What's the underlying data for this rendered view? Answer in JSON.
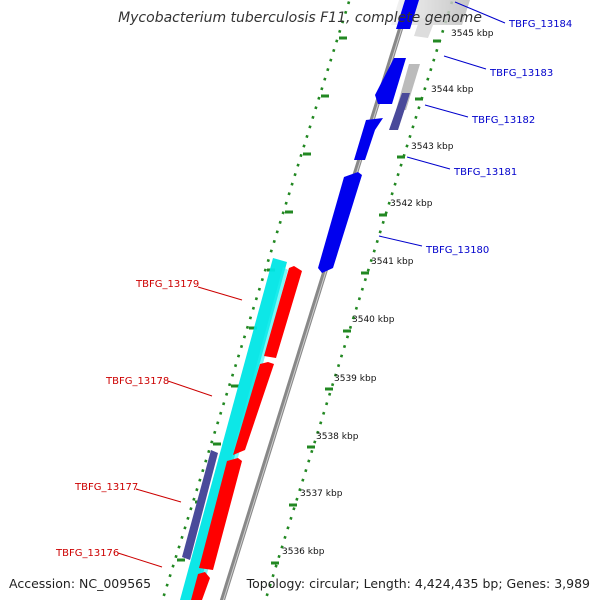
{
  "title": "Mycobacterium tuberculosis F11, complete genome",
  "accession_label": "Accession: NC_009565",
  "topology_label": "Topology: circular; Length: 4,424,435 bp; Genes: 3,989",
  "colors": {
    "forward_cds": "#0000ee",
    "forward_label": "#0000cc",
    "reverse_cds": "#ff0000",
    "reverse_label": "#cc0000",
    "other_feature": "#00e0e8",
    "gap": "#4a4a9a",
    "backbone": "#888888",
    "tick": "#228822"
  },
  "scale_ticks": [
    {
      "label": "3536 kbp"
    },
    {
      "label": "3537 kbp"
    },
    {
      "label": "3538 kbp"
    },
    {
      "label": "3539 kbp"
    },
    {
      "label": "3540 kbp"
    },
    {
      "label": "3541 kbp"
    },
    {
      "label": "3542 kbp"
    },
    {
      "label": "3543 kbp"
    },
    {
      "label": "3544 kbp"
    },
    {
      "label": "3545 kbp"
    }
  ],
  "forward_genes": [
    {
      "label": "TBFG_13184"
    },
    {
      "label": "TBFG_13183"
    },
    {
      "label": "TBFG_13182"
    },
    {
      "label": "TBFG_13181"
    },
    {
      "label": "TBFG_13180"
    }
  ],
  "reverse_genes": [
    {
      "label": "TBFG_13179"
    },
    {
      "label": "TBFG_13178"
    },
    {
      "label": "TBFG_13177"
    },
    {
      "label": "TBFG_13176"
    }
  ]
}
